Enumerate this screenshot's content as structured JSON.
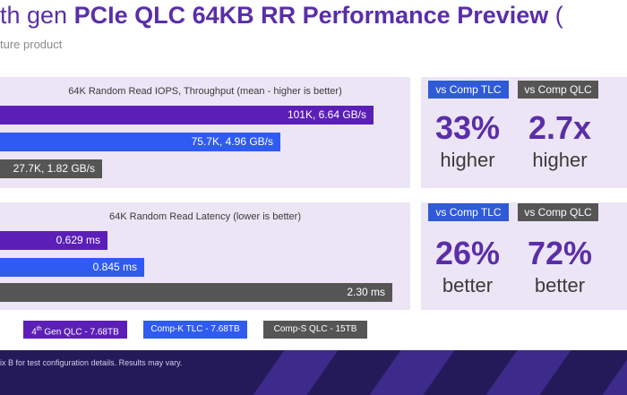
{
  "header": {
    "title_prefix": "th gen ",
    "title_main": "PCIe QLC 64KB RR Performance Preview",
    "title_suffix": " (",
    "subtitle": "ture product"
  },
  "chart_data": [
    {
      "type": "bar",
      "orientation": "horizontal",
      "title": "64K Random Read IOPS, Throughput (mean - higher is better)",
      "categories": [
        "4th Gen QLC - 7.68TB",
        "Comp-K TLC - 7.68TB",
        "Comp-S QLC - 15TB"
      ],
      "values": [
        101,
        75.7,
        27.7
      ],
      "unit": "K IOPS",
      "data_labels": [
        "101K, 6.64 GB/s",
        "75.7K, 4.96 GB/s",
        "27.7K, 1.82 GB/s"
      ],
      "colors": [
        "#5b1fb8",
        "#2f5bf0",
        "#555555"
      ],
      "xlim": [
        0,
        106
      ]
    },
    {
      "type": "bar",
      "orientation": "horizontal",
      "title": "64K Random Read Latency (lower is better)",
      "categories": [
        "4th Gen QLC - 7.68TB",
        "Comp-K TLC - 7.68TB",
        "Comp-S QLC - 15TB"
      ],
      "values": [
        0.629,
        0.845,
        2.3
      ],
      "unit": "ms",
      "data_labels": [
        "0.629 ms",
        "0.845 ms",
        "2.30 ms"
      ],
      "colors": [
        "#5b1fb8",
        "#2f5bf0",
        "#555555"
      ],
      "xlim": [
        0,
        2.3
      ]
    }
  ],
  "stats": [
    {
      "tlc_tag": "vs Comp TLC",
      "qlc_tag": "vs Comp QLC",
      "tlc_value": "33%",
      "tlc_word": "higher",
      "qlc_value": "2.7x",
      "qlc_word": "higher"
    },
    {
      "tlc_tag": "vs Comp TLC",
      "qlc_tag": "vs Comp QLC",
      "tlc_value": "26%",
      "tlc_word": "better",
      "qlc_value": "72%",
      "qlc_word": "better"
    }
  ],
  "legend": [
    {
      "prefix": "4",
      "sup": "th",
      "rest": " Gen QLC - 7.68TB",
      "color": "#5b1fb8"
    },
    {
      "prefix": "Comp-K TLC - 7.68TB",
      "sup": "",
      "rest": "",
      "color": "#2f5bf0"
    },
    {
      "prefix": "Comp-S QLC - 15TB",
      "sup": "",
      "rest": "",
      "color": "#555555"
    }
  ],
  "footnote": "ix B for test configuration details. Results may vary."
}
